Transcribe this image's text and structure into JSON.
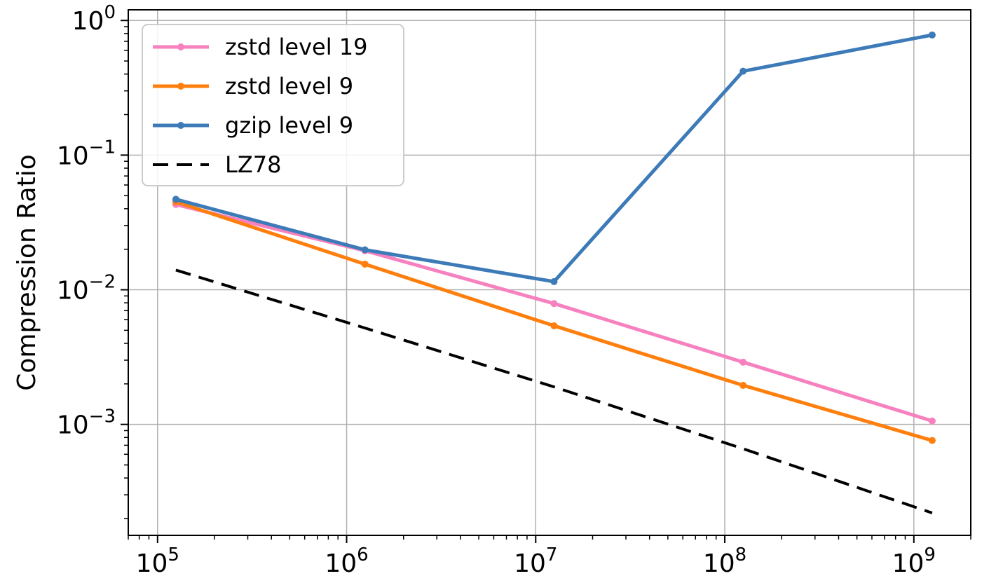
{
  "chart_data": {
    "type": "line",
    "title": "",
    "xlabel": "",
    "ylabel": "Compression Ratio",
    "xscale": "log",
    "yscale": "log",
    "xlim": [
      70000,
      2000000000
    ],
    "ylim": [
      0.00015,
      1.2
    ],
    "grid": true,
    "legend_position": "top-left",
    "x_ticks": [
      {
        "value": 100000,
        "label": "10^5"
      },
      {
        "value": 1000000,
        "label": "10^6"
      },
      {
        "value": 10000000,
        "label": "10^7"
      },
      {
        "value": 100000000,
        "label": "10^8"
      },
      {
        "value": 1000000000,
        "label": "10^9"
      }
    ],
    "y_ticks": [
      {
        "value": 0.001,
        "label": "10^-3"
      },
      {
        "value": 0.01,
        "label": "10^-2"
      },
      {
        "value": 0.1,
        "label": "10^-1"
      },
      {
        "value": 1,
        "label": "10^0"
      }
    ],
    "x": [
      125000,
      1250000,
      12500000,
      125000000,
      1250000000
    ],
    "series": [
      {
        "name": "zstd level 19",
        "color": "#f781bf",
        "style": "solid",
        "marker": true,
        "values": [
          0.043,
          0.0195,
          0.0079,
          0.0029,
          0.00106
        ]
      },
      {
        "name": "zstd level 9",
        "color": "#ff7f0e",
        "style": "solid",
        "marker": true,
        "values": [
          0.045,
          0.0155,
          0.0054,
          0.00195,
          0.00076
        ]
      },
      {
        "name": "gzip level 9",
        "color": "#3d7bb8",
        "style": "solid",
        "marker": true,
        "values": [
          0.047,
          0.0198,
          0.0115,
          0.42,
          0.78
        ]
      },
      {
        "name": "LZ78",
        "color": "#000000",
        "style": "dashed",
        "marker": false,
        "values": [
          0.014,
          0.0052,
          0.0019,
          0.00066,
          0.00022
        ]
      }
    ]
  }
}
